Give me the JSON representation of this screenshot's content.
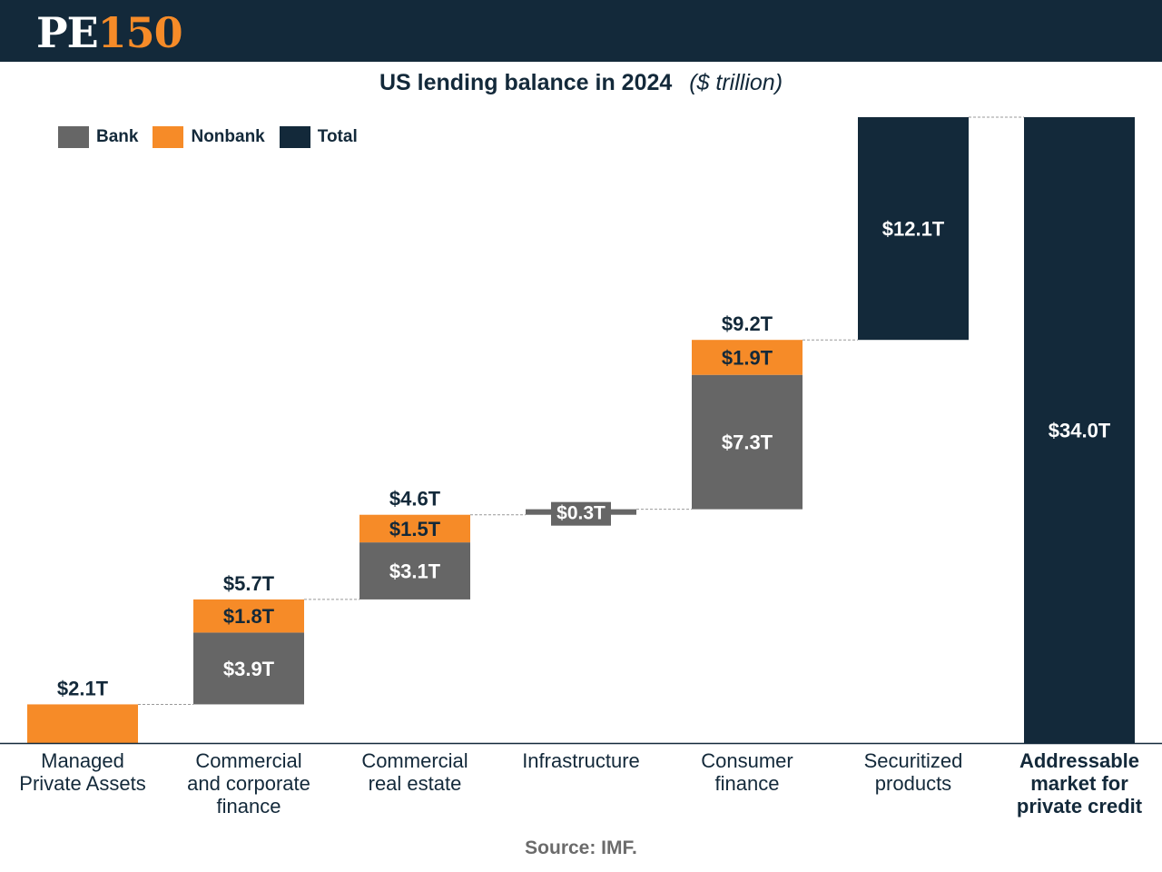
{
  "brand": {
    "logo_left": "PE",
    "logo_right": "150"
  },
  "header": {
    "title": "US lending balance in 2024",
    "unit": "($ trillion)"
  },
  "legend": [
    {
      "label": "Bank",
      "color": "#666666"
    },
    {
      "label": "Nonbank",
      "color": "#f68b28"
    },
    {
      "label": "Total",
      "color": "#13293a"
    }
  ],
  "source": "Source: IMF.",
  "colors": {
    "bank": "#666666",
    "nonbank": "#f68b28",
    "total": "#13293a",
    "connector": "#999999",
    "axis": "#13293a"
  },
  "chart_data": {
    "type": "bar",
    "subtype": "waterfall",
    "title": "US lending balance in 2024",
    "unit": "($ trillion)",
    "ylim": [
      0,
      34.0
    ],
    "grid": false,
    "legend_position": "top-left",
    "categories": [
      {
        "label": [
          "Managed",
          "Private Assets"
        ],
        "bold": false
      },
      {
        "label": [
          "Commercial",
          "and corporate",
          "finance"
        ],
        "bold": false
      },
      {
        "label": [
          "Commercial",
          "real estate"
        ],
        "bold": false
      },
      {
        "label": [
          "Infrastructure"
        ],
        "bold": false
      },
      {
        "label": [
          "Consumer",
          "finance"
        ],
        "bold": false
      },
      {
        "label": [
          "Securitized",
          "products"
        ],
        "bold": false
      },
      {
        "label": [
          "Addressable",
          "market for",
          "private credit"
        ],
        "bold": true
      }
    ],
    "series": [
      {
        "name": "Bank",
        "values": [
          0,
          3.9,
          3.1,
          0.3,
          7.3,
          0,
          0
        ]
      },
      {
        "name": "Nonbank",
        "values": [
          2.1,
          1.8,
          1.5,
          0,
          1.9,
          0,
          0
        ]
      },
      {
        "name": "Total",
        "values": [
          0,
          0,
          0,
          0,
          0,
          12.1,
          34.0
        ]
      }
    ],
    "segment_labels": [
      [
        {
          "series": "Nonbank",
          "text": "$2.1T"
        }
      ],
      [
        {
          "series": "Bank",
          "text": "$3.9T"
        },
        {
          "series": "Nonbank",
          "text": "$1.8T"
        }
      ],
      [
        {
          "series": "Bank",
          "text": "$3.1T"
        },
        {
          "series": "Nonbank",
          "text": "$1.5T"
        }
      ],
      [
        {
          "series": "Bank",
          "text": "$0.3T"
        }
      ],
      [
        {
          "series": "Bank",
          "text": "$7.3T"
        },
        {
          "series": "Nonbank",
          "text": "$1.9T"
        }
      ],
      [
        {
          "series": "Total",
          "text": "$12.1T"
        }
      ],
      [
        {
          "series": "Total",
          "text": "$34.0T"
        }
      ]
    ],
    "category_totals": [
      "$2.1T",
      "$5.7T",
      "$4.6T",
      "",
      "$9.2T",
      "",
      ""
    ]
  }
}
